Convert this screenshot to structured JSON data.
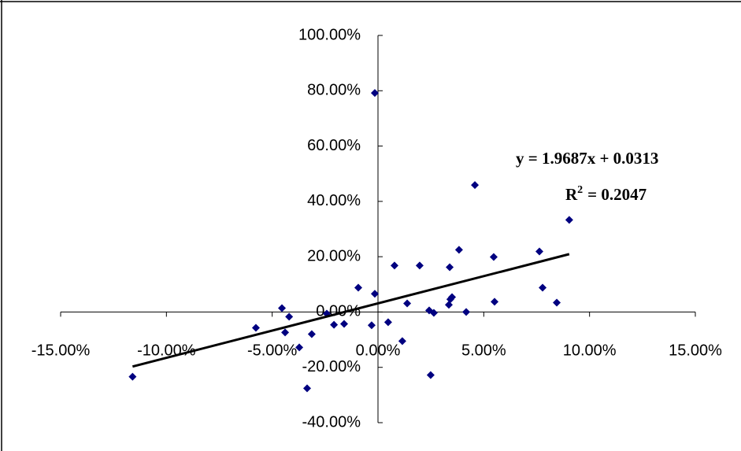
{
  "chart_data": {
    "type": "scatter",
    "color": "#000080",
    "x": [
      -0.116,
      -0.0577,
      -0.0454,
      -0.0439,
      -0.042,
      -0.0372,
      -0.0335,
      -0.0313,
      -0.0242,
      -0.0208,
      -0.016,
      -0.0093,
      -0.003,
      -0.0015,
      -0.0015,
      0.0048,
      0.0078,
      0.0115,
      0.0138,
      0.0197,
      0.0242,
      0.0249,
      0.0264,
      0.0339,
      0.0335,
      0.0342,
      0.035,
      0.0383,
      0.0417,
      0.0458,
      0.0547,
      0.0551,
      0.0763,
      0.0778,
      0.0845,
      0.0904
    ],
    "values": [
      -0.234,
      -0.057,
      0.014,
      -0.074,
      -0.017,
      -0.128,
      -0.276,
      -0.08,
      -0.006,
      -0.046,
      -0.043,
      0.088,
      -0.048,
      0.066,
      0.792,
      -0.037,
      0.168,
      -0.105,
      0.031,
      0.168,
      0.006,
      -0.228,
      -0.003,
      0.162,
      0.026,
      0.046,
      0.054,
      0.225,
      0.0,
      0.459,
      0.199,
      0.037,
      0.219,
      0.088,
      0.034,
      0.333
    ],
    "xlim": [
      -0.15,
      0.15
    ],
    "xticks": [
      {
        "value": -0.15,
        "label": "-15.00%"
      },
      {
        "value": -0.1,
        "label": "-10.00%"
      },
      {
        "value": -0.05,
        "label": "-5.00%"
      },
      {
        "value": 0,
        "label": "0.00%"
      },
      {
        "value": 0.05,
        "label": "5.00%"
      },
      {
        "value": 0.1,
        "label": "10.00%"
      },
      {
        "value": 0.15,
        "label": "15.00%"
      }
    ],
    "ylim": [
      -0.4,
      1.0
    ],
    "yticks": [
      {
        "value": -0.4,
        "label": "-40.00%"
      },
      {
        "value": -0.2,
        "label": "-20.00%"
      },
      {
        "value": 0,
        "label": "0.00%"
      },
      {
        "value": 0.2,
        "label": "20.00%"
      },
      {
        "value": 0.4,
        "label": "40.00%"
      },
      {
        "value": 0.6,
        "label": "60.00%"
      },
      {
        "value": 0.8,
        "label": "80.00%"
      },
      {
        "value": 1.0,
        "label": "100.00%"
      }
    ],
    "trendline": {
      "slope": 1.9687,
      "intercept": 0.0313,
      "x_range": [
        -0.116,
        0.0904
      ],
      "color": "#000000",
      "equation": "y = 1.9687x + 0.0313",
      "r2_symbol": "R",
      "r2_exponent": "2",
      "r2_value": "= 0.2047"
    }
  }
}
